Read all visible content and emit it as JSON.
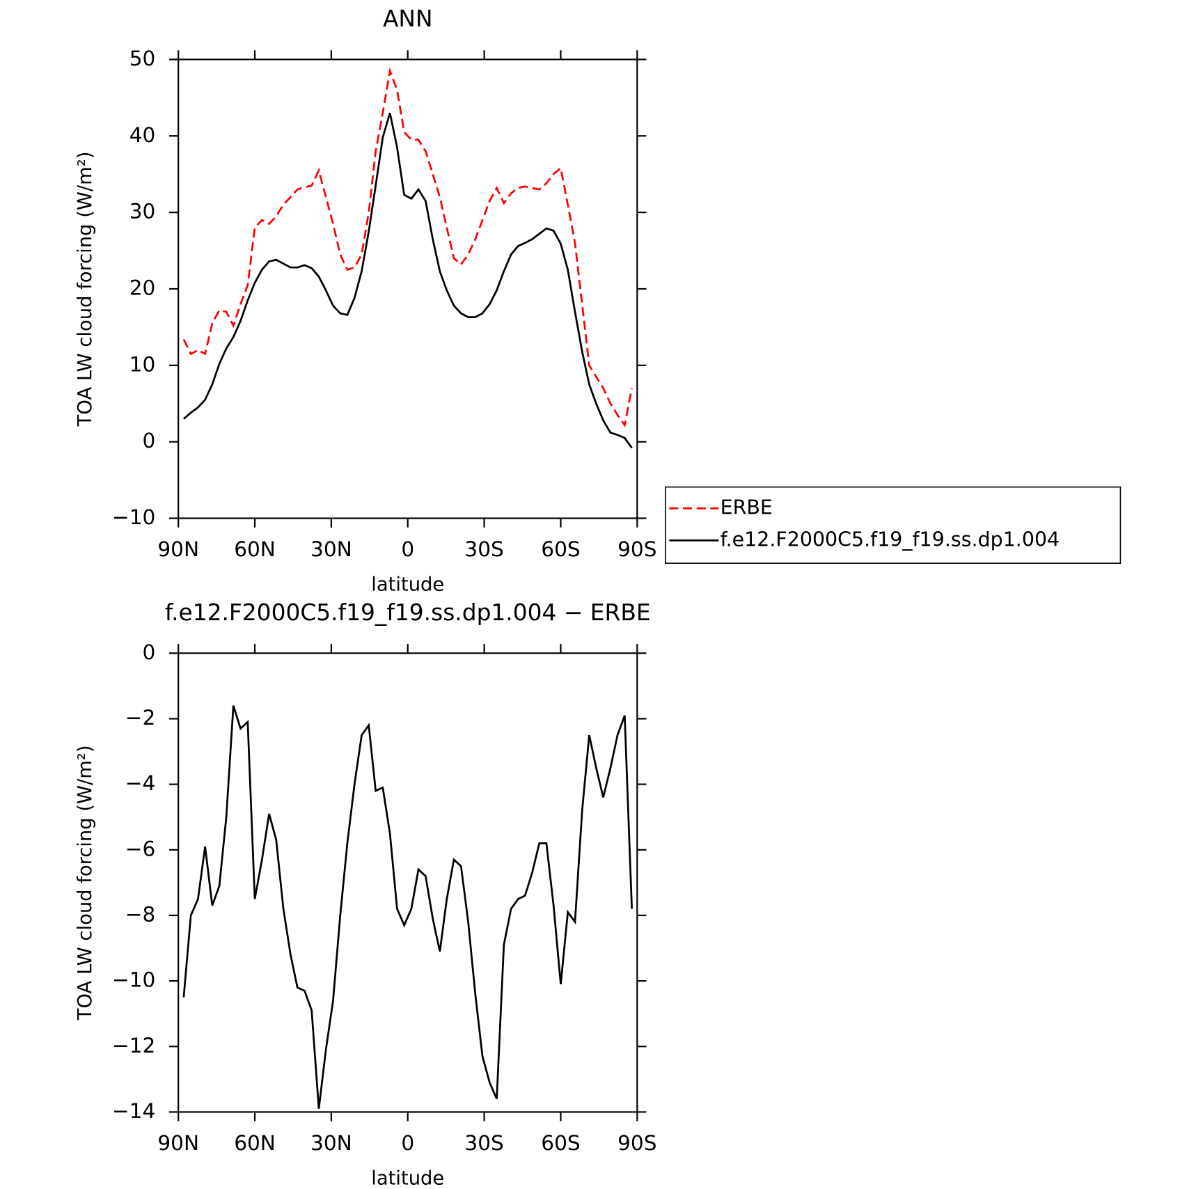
{
  "chart_data": [
    {
      "type": "line",
      "title": "ANN",
      "xlabel": "latitude",
      "ylabel": "TOA LW cloud forcing (W/m²)",
      "xlim": [
        90,
        -90
      ],
      "xticks": [
        {
          "value": 90,
          "label": "90N"
        },
        {
          "value": 60,
          "label": "60N"
        },
        {
          "value": 30,
          "label": "30N"
        },
        0,
        {
          "value": -30,
          "label": "30S"
        },
        {
          "value": -60,
          "label": "60S"
        },
        {
          "value": -90,
          "label": "90S"
        }
      ],
      "ylim": [
        -10,
        50
      ],
      "yticks": [
        {
          "value": -10,
          "label": "−10"
        },
        0,
        10,
        20,
        30,
        40,
        50
      ],
      "legend": "right",
      "grid": false,
      "x": [
        87.9,
        85.1,
        82.3,
        79.5,
        76.7,
        73.9,
        71.2,
        68.4,
        65.6,
        62.8,
        60.0,
        57.2,
        54.4,
        51.6,
        48.8,
        46.0,
        43.3,
        40.5,
        37.7,
        34.9,
        32.1,
        29.3,
        26.5,
        23.7,
        20.9,
        18.1,
        15.3,
        12.6,
        9.8,
        7.0,
        4.2,
        1.4,
        -1.4,
        -4.2,
        -7.0,
        -9.8,
        -12.6,
        -15.3,
        -18.1,
        -20.9,
        -23.7,
        -26.5,
        -29.3,
        -32.1,
        -34.9,
        -37.7,
        -40.5,
        -43.3,
        -46.0,
        -48.8,
        -51.6,
        -54.4,
        -57.2,
        -60.0,
        -62.8,
        -65.6,
        -68.4,
        -71.2,
        -73.9,
        -76.7,
        -79.5,
        -82.3,
        -85.1,
        -87.9
      ],
      "series": [
        {
          "name": "ERBE",
          "color": "#ff0000",
          "style": "dashed",
          "values": [
            13.4,
            11.5,
            12,
            11.5,
            15.5,
            17.2,
            17,
            15.2,
            18,
            20.5,
            28,
            29,
            28.5,
            29.5,
            31,
            32,
            33,
            33.3,
            33.5,
            35.5,
            32,
            28.5,
            24.5,
            22.5,
            22.8,
            24.5,
            30,
            38,
            43,
            48.5,
            46,
            40.5,
            39.5,
            39.5,
            38,
            35,
            32,
            28,
            24,
            23.2,
            24.5,
            26.5,
            29,
            31.5,
            33.2,
            31.2,
            32.5,
            33.2,
            33.4,
            33.2,
            33,
            33.8,
            35,
            35.8,
            31,
            26,
            18,
            10,
            8.5,
            7,
            5,
            3.5,
            2.2,
            7
          ]
        },
        {
          "name": "f.e12.F2000C5.f19_f19.ss.dp1.004",
          "color": "#000000",
          "style": "solid",
          "values": [
            3,
            3.8,
            4.5,
            5.5,
            7.5,
            10.2,
            12.2,
            13.7,
            15.8,
            18.5,
            20.8,
            22.5,
            23.6,
            23.8,
            23.3,
            22.8,
            22.8,
            23.1,
            22.7,
            21.6,
            19.8,
            17.8,
            16.8,
            16.6,
            18.8,
            22.3,
            27.5,
            33.5,
            39.8,
            43,
            38.5,
            32.3,
            31.8,
            33,
            31.5,
            26.5,
            22.3,
            19.8,
            17.8,
            16.8,
            16.3,
            16.3,
            16.8,
            18,
            19.8,
            22.3,
            24.5,
            25.6,
            26,
            26.5,
            27.2,
            27.9,
            27.6,
            25.9,
            22.5,
            17,
            11.8,
            7.5,
            5,
            2.8,
            1.2,
            0.9,
            0.5,
            -0.8
          ]
        }
      ]
    },
    {
      "type": "line",
      "title": "f.e12.F2000C5.f19_f19.ss.dp1.004 − ERBE",
      "xlabel": "latitude",
      "ylabel": "TOA LW cloud forcing (W/m²)",
      "xlim": [
        90,
        -90
      ],
      "xticks": [
        {
          "value": 90,
          "label": "90N"
        },
        {
          "value": 60,
          "label": "60N"
        },
        {
          "value": 30,
          "label": "30N"
        },
        0,
        {
          "value": -30,
          "label": "30S"
        },
        {
          "value": -60,
          "label": "60S"
        },
        {
          "value": -90,
          "label": "90S"
        }
      ],
      "ylim": [
        -14,
        0
      ],
      "yticks": [
        {
          "value": -14,
          "label": "−14"
        },
        {
          "value": -12,
          "label": "−12"
        },
        {
          "value": -10,
          "label": "−10"
        },
        {
          "value": -8,
          "label": "−8"
        },
        {
          "value": -6,
          "label": "−6"
        },
        {
          "value": -4,
          "label": "−4"
        },
        {
          "value": -2,
          "label": "−2"
        },
        0
      ],
      "grid": false,
      "x": [
        87.9,
        85.1,
        82.3,
        79.5,
        76.7,
        73.9,
        71.2,
        68.4,
        65.6,
        62.8,
        60.0,
        57.2,
        54.4,
        51.6,
        48.8,
        46.0,
        43.3,
        40.5,
        37.7,
        34.9,
        32.1,
        29.3,
        26.5,
        23.7,
        20.9,
        18.1,
        15.3,
        12.6,
        9.8,
        7.0,
        4.2,
        1.4,
        -1.4,
        -4.2,
        -7.0,
        -9.8,
        -12.6,
        -15.3,
        -18.1,
        -20.9,
        -23.7,
        -26.5,
        -29.3,
        -32.1,
        -34.9,
        -37.7,
        -40.5,
        -43.3,
        -46.0,
        -48.8,
        -51.6,
        -54.4,
        -57.2,
        -60.0,
        -62.8,
        -65.6,
        -68.4,
        -71.2,
        -73.9,
        -76.7,
        -79.5,
        -82.3,
        -85.1,
        -87.9
      ],
      "series": [
        {
          "color": "#000000",
          "style": "solid",
          "values": [
            -10.5,
            -8,
            -7.5,
            -5.9,
            -7.7,
            -7.1,
            -5,
            -1.6,
            -2.3,
            -2.1,
            -7.5,
            -6.3,
            -4.9,
            -5.7,
            -7.8,
            -9.2,
            -10.2,
            -10.3,
            -10.9,
            -13.9,
            -12.1,
            -10.6,
            -8,
            -5.8,
            -4,
            -2.5,
            -2.2,
            -4.2,
            -4.1,
            -5.5,
            -7.8,
            -8.3,
            -7.8,
            -6.6,
            -6.8,
            -8.1,
            -9.1,
            -7.5,
            -6.3,
            -6.5,
            -8.2,
            -10.4,
            -12.3,
            -13.1,
            -13.6,
            -8.9,
            -7.8,
            -7.5,
            -7.4,
            -6.7,
            -5.8,
            -5.8,
            -7.7,
            -10.1,
            -7.9,
            -8.2,
            -4.8,
            -2.5,
            -3.5,
            -4.4,
            -3.5,
            -2.5,
            -1.9,
            -7.8
          ]
        }
      ]
    }
  ]
}
